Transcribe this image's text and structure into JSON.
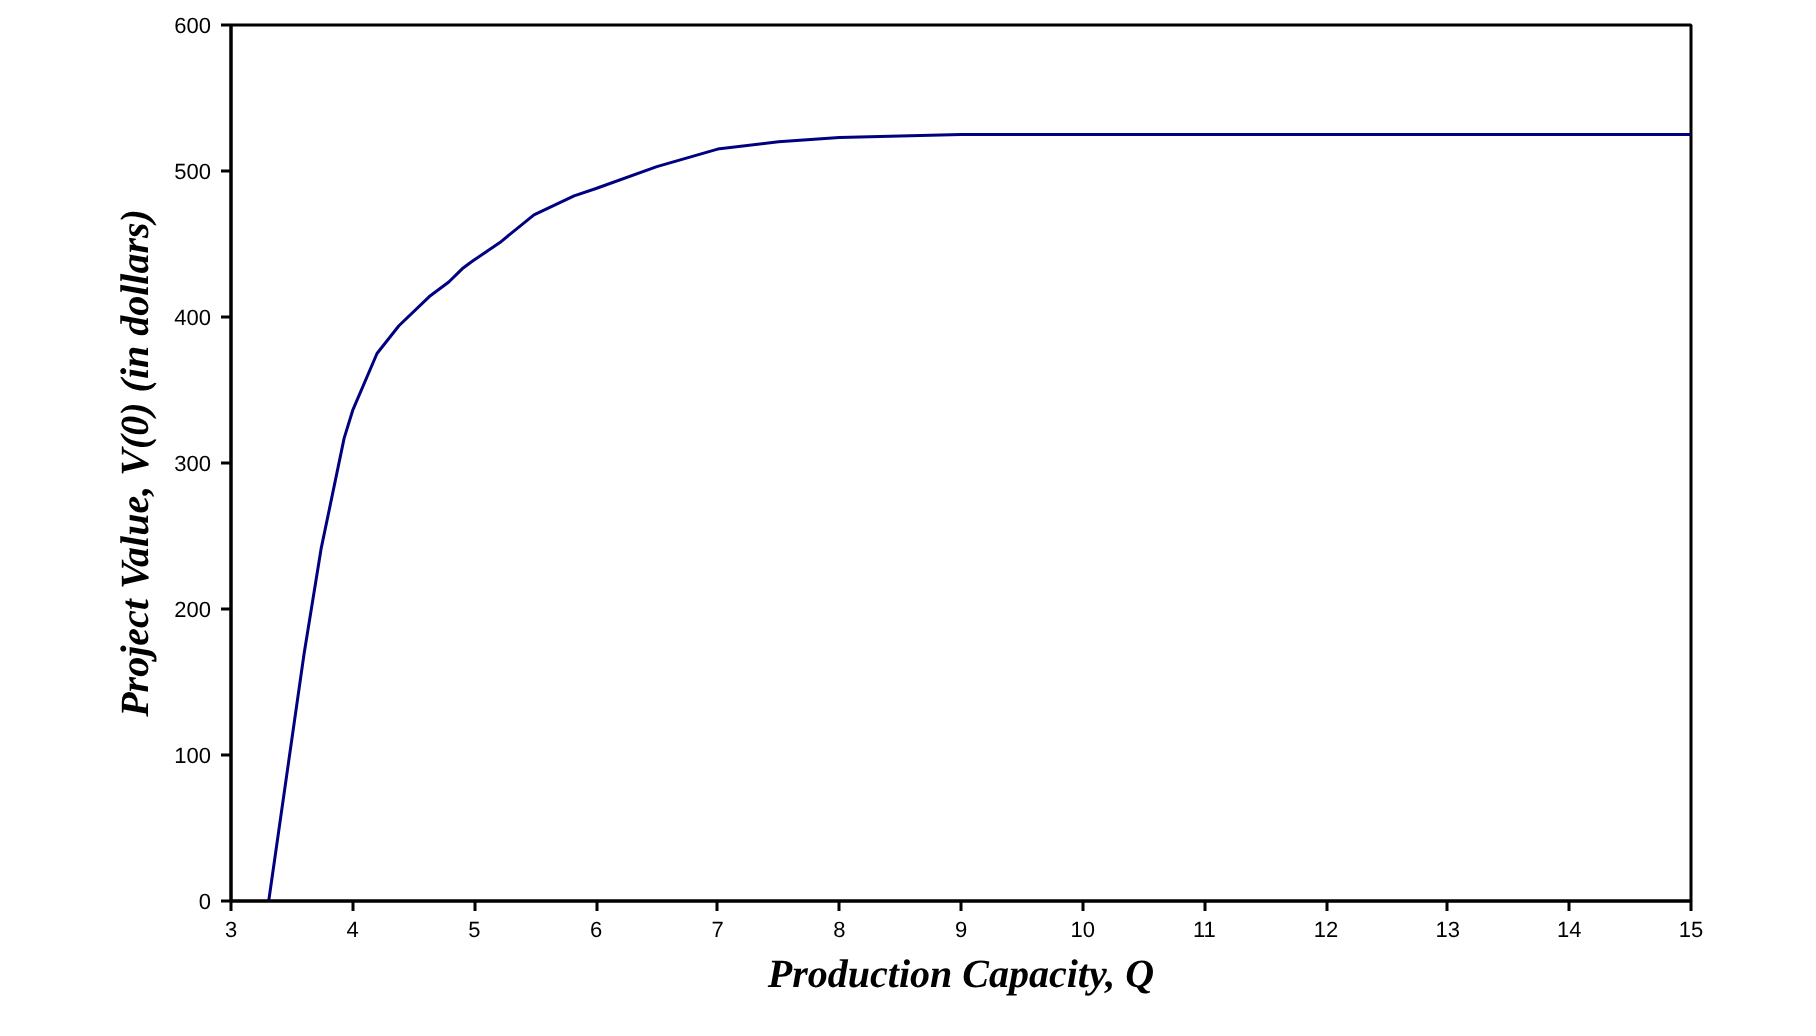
{
  "chart_data": {
    "type": "line",
    "xlabel": "Production Capacity, Q",
    "ylabel": "Project Value, V(0) (in dollars)",
    "x": [
      3.31,
      3.6,
      3.74,
      3.93,
      4.0,
      4.2,
      4.38,
      4.63,
      4.79,
      4.9,
      4.98,
      5.21,
      5.49,
      5.82,
      6.0,
      6.5,
      7.0,
      7.5,
      8.0,
      9.0,
      15.0
    ],
    "series": [
      {
        "color": "#000080",
        "values": [
          0,
          169,
          241,
          317,
          336,
          375,
          394,
          414,
          424,
          433,
          438,
          451,
          470,
          483,
          488,
          503,
          515,
          520,
          523,
          525,
          525
        ]
      }
    ],
    "xlim": [
      3,
      15
    ],
    "xticks": [
      3,
      4,
      5,
      6,
      7,
      8,
      9,
      10,
      11,
      12,
      13,
      14,
      15
    ],
    "ylim": [
      0,
      600
    ],
    "yticks": [
      0,
      100,
      200,
      300,
      400,
      500,
      600
    ],
    "grid": false,
    "marker": "none",
    "line_style": "solid"
  }
}
